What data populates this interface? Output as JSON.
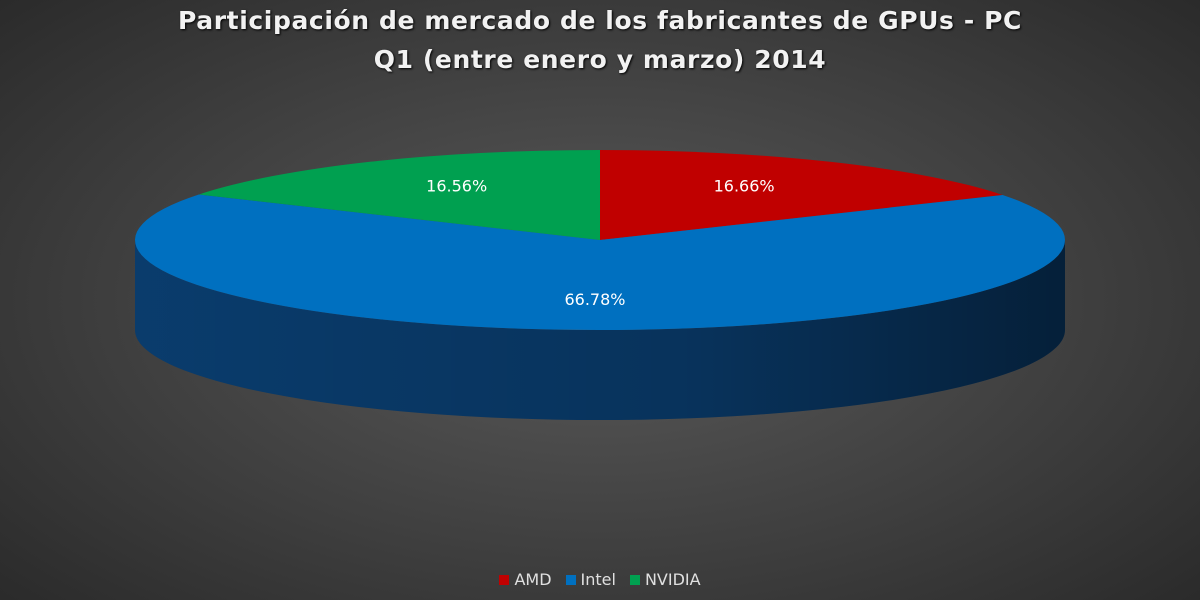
{
  "chart_data": {
    "type": "pie",
    "title_line1": "Participación de mercado de los fabricantes de GPUs - PC",
    "title_line2": "Q1 (entre enero y marzo) 2014",
    "style": "3d",
    "legend_position": "bottom",
    "slices": [
      {
        "name": "AMD",
        "value": 16.66,
        "label": "16.66%",
        "color": "#c00000",
        "side_color": "#7a0000"
      },
      {
        "name": "Intel",
        "value": 66.78,
        "label": "66.78%",
        "color": "#0070c0",
        "side_color": "#0a3f72"
      },
      {
        "name": "NVIDIA",
        "value": 16.56,
        "label": "16.56%",
        "color": "#00a050",
        "side_color": "#006a34"
      }
    ]
  }
}
